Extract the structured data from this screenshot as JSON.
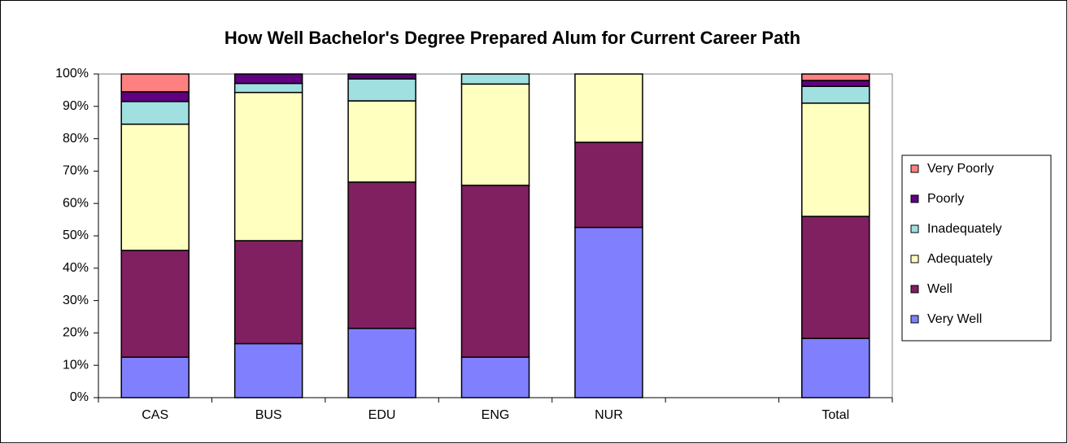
{
  "chart_data": {
    "type": "stacked_bar",
    "title": "How Well Bachelor's Degree Prepared Alum for Current Career Path",
    "categories": [
      "CAS",
      "BUS",
      "EDU",
      "ENG",
      "NUR",
      null,
      "Total"
    ],
    "series": [
      {
        "name": "Very Well",
        "color": "#8080ff",
        "values": [
          12.5,
          16.7,
          21.4,
          12.5,
          52.6,
          null,
          18.3
        ]
      },
      {
        "name": "Well",
        "color": "#802060",
        "values": [
          33,
          31.8,
          45.2,
          53.1,
          26.3,
          null,
          37.7
        ]
      },
      {
        "name": "Adequately",
        "color": "#ffffc0",
        "values": [
          39,
          45.8,
          25.1,
          31.3,
          21.1,
          null,
          35
        ]
      },
      {
        "name": "Inadequately",
        "color": "#a0e0e0",
        "values": [
          7,
          2.8,
          6.8,
          3.1,
          0,
          null,
          5.2
        ]
      },
      {
        "name": "Poorly",
        "color": "#600080",
        "values": [
          3,
          2.9,
          1.5,
          0,
          0,
          null,
          1.8
        ]
      },
      {
        "name": "Very Poorly",
        "color": "#ff8080",
        "values": [
          5.5,
          0,
          0,
          0,
          0,
          null,
          2
        ]
      }
    ],
    "ylim": [
      0,
      100
    ],
    "yticks": [
      {
        "value": 0,
        "label": "0%"
      },
      {
        "value": 10,
        "label": "10%"
      },
      {
        "value": 20,
        "label": "20%"
      },
      {
        "value": 30,
        "label": "30%"
      },
      {
        "value": 40,
        "label": "40%"
      },
      {
        "value": 50,
        "label": "50%"
      },
      {
        "value": 60,
        "label": "60%"
      },
      {
        "value": 70,
        "label": "70%"
      },
      {
        "value": 80,
        "label": "80%"
      },
      {
        "value": 90,
        "label": "90%"
      },
      {
        "value": 100,
        "label": "100%"
      }
    ],
    "grid": false,
    "legend": "right"
  }
}
